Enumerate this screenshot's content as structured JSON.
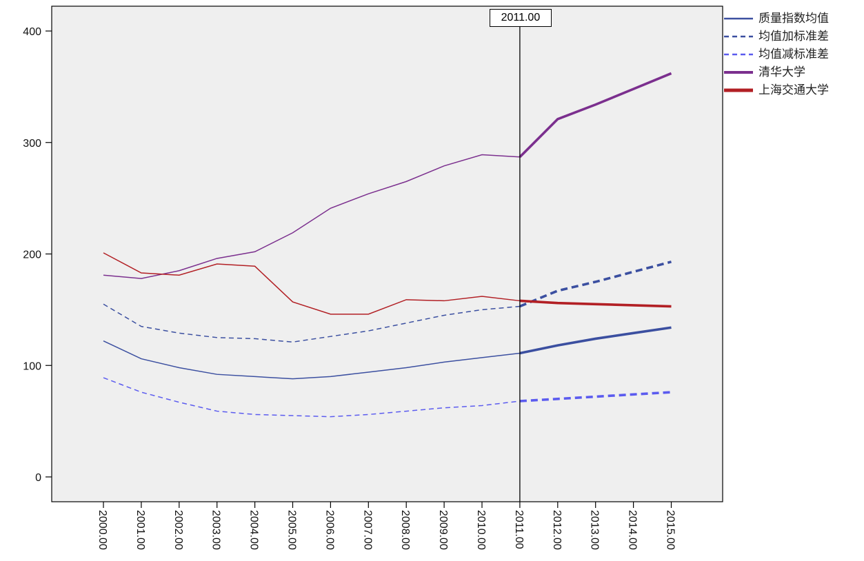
{
  "chart_data": {
    "type": "line",
    "x": [
      "2000.00",
      "2001.00",
      "2002.00",
      "2003.00",
      "2004.00",
      "2005.00",
      "2006.00",
      "2007.00",
      "2008.00",
      "2009.00",
      "2010.00",
      "2011.00",
      "2012.00",
      "2013.00",
      "2014.00",
      "2015.00"
    ],
    "ylim": [
      0,
      400
    ],
    "yticks": [
      "0",
      "100",
      "200",
      "300",
      "400"
    ],
    "reference_line": {
      "x": "2011.00",
      "label": "2011.00"
    },
    "legend_position": "top-right",
    "grid": false,
    "plot_background": "#efefef",
    "series": [
      {
        "name": "质量指数均值",
        "color": "#3b4fa0",
        "style": "solid",
        "values": [
          122,
          106,
          98,
          92,
          90,
          88,
          90,
          94,
          98,
          103,
          107,
          111,
          118,
          124,
          129,
          134
        ]
      },
      {
        "name": "均值加标准差",
        "color": "#3b4fa0",
        "style": "dashed",
        "values": [
          155,
          135,
          129,
          125,
          124,
          121,
          126,
          131,
          138,
          145,
          150,
          153,
          167,
          175,
          184,
          193
        ]
      },
      {
        "name": "均值减标准差",
        "color": "#5b5bef",
        "style": "dashed",
        "values": [
          89,
          76,
          67,
          59,
          56,
          55,
          54,
          56,
          59,
          62,
          64,
          68,
          70,
          72,
          74,
          76
        ]
      },
      {
        "name": "清华大学",
        "color": "#7b2f8e",
        "style": "solid",
        "values": [
          181,
          178,
          185,
          196,
          202,
          219,
          241,
          254,
          265,
          279,
          289,
          287,
          321,
          334,
          348,
          362
        ]
      },
      {
        "name": "上海交通大学",
        "color": "#b21f24",
        "style": "solid",
        "values": [
          201,
          183,
          181,
          191,
          189,
          157,
          146,
          146,
          159,
          158,
          162,
          158,
          156,
          155,
          154,
          153
        ]
      }
    ]
  }
}
